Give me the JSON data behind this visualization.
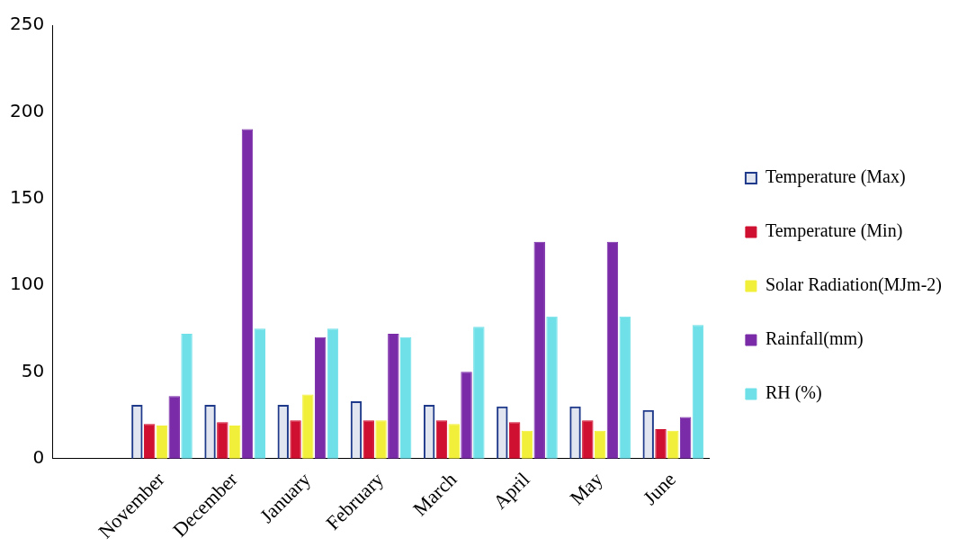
{
  "chart_data": {
    "type": "bar",
    "categories": [
      null,
      "November",
      "December",
      "January",
      "February",
      "March",
      "April",
      "May",
      "June"
    ],
    "series": [
      {
        "name": "Temperature (Max)",
        "color": "#1f3a8a",
        "values": [
          null,
          31,
          31,
          31,
          33,
          31,
          30,
          30,
          28
        ]
      },
      {
        "name": "Temperature (Min)",
        "color": "#d01030",
        "values": [
          null,
          20,
          21,
          22,
          22,
          22,
          21,
          22,
          17
        ]
      },
      {
        "name": "Solar Radiation(MJm-2)",
        "color": "#f2ef3a",
        "values": [
          null,
          19,
          19,
          37,
          22,
          20,
          16,
          16,
          16
        ]
      },
      {
        "name": "Rainfall(mm)",
        "color": "#7a2ca8",
        "values": [
          null,
          36,
          190,
          70,
          72,
          50,
          125,
          125,
          24
        ]
      },
      {
        "name": "RH (%)",
        "color": "#6fe0e8",
        "values": [
          null,
          72,
          75,
          75,
          70,
          76,
          82,
          82,
          77
        ]
      }
    ],
    "ylim": [
      0,
      250
    ],
    "yticks": [
      0,
      50,
      100,
      150,
      200,
      250
    ],
    "grid": false,
    "legend": "right"
  }
}
